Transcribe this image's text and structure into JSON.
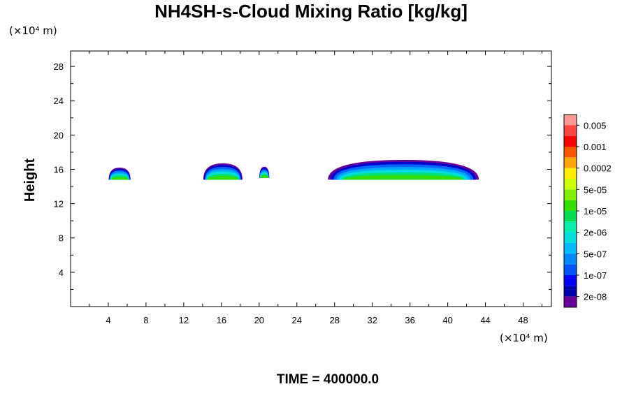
{
  "chart_data": {
    "type": "heatmap",
    "title": "NH4SH-s-Cloud Mixing Ratio [kg/kg]",
    "ylabel": "Height",
    "y_unit": "(×10⁴ m)",
    "x_unit": "(×10⁴ m)",
    "time_label": "TIME = 400000.0",
    "xlim": [
      0,
      51
    ],
    "ylim": [
      0,
      29.8
    ],
    "x_ticks": [
      4,
      8,
      12,
      16,
      20,
      24,
      28,
      32,
      36,
      40,
      44,
      48
    ],
    "y_ticks": [
      4,
      8,
      12,
      16,
      20,
      24,
      28
    ],
    "colorbar": {
      "labels": [
        "0.005",
        "0.001",
        "0.0002",
        "5e-05",
        "1e-05",
        "2e-06",
        "5e-07",
        "1e-07",
        "2e-08"
      ],
      "colors": [
        "#ff9999",
        "#ff4444",
        "#ff0000",
        "#ff5500",
        "#ffa500",
        "#ffee00",
        "#ccff00",
        "#88ee00",
        "#33dd00",
        "#00dd55",
        "#00eeaa",
        "#00dddd",
        "#00bbff",
        "#0088ff",
        "#0055ff",
        "#0000ff",
        "#0000aa",
        "#660099"
      ]
    },
    "cloud_regions": [
      {
        "x": [
          4.0,
          6.4
        ],
        "y": [
          14.8,
          16.2
        ]
      },
      {
        "x": [
          14.0,
          18.3
        ],
        "y": [
          14.8,
          16.7
        ]
      },
      {
        "x": [
          20.0,
          21.1
        ],
        "y": [
          15.0,
          16.3
        ]
      },
      {
        "x": [
          27.0,
          43.6
        ],
        "y": [
          14.8,
          17.1
        ]
      }
    ]
  }
}
